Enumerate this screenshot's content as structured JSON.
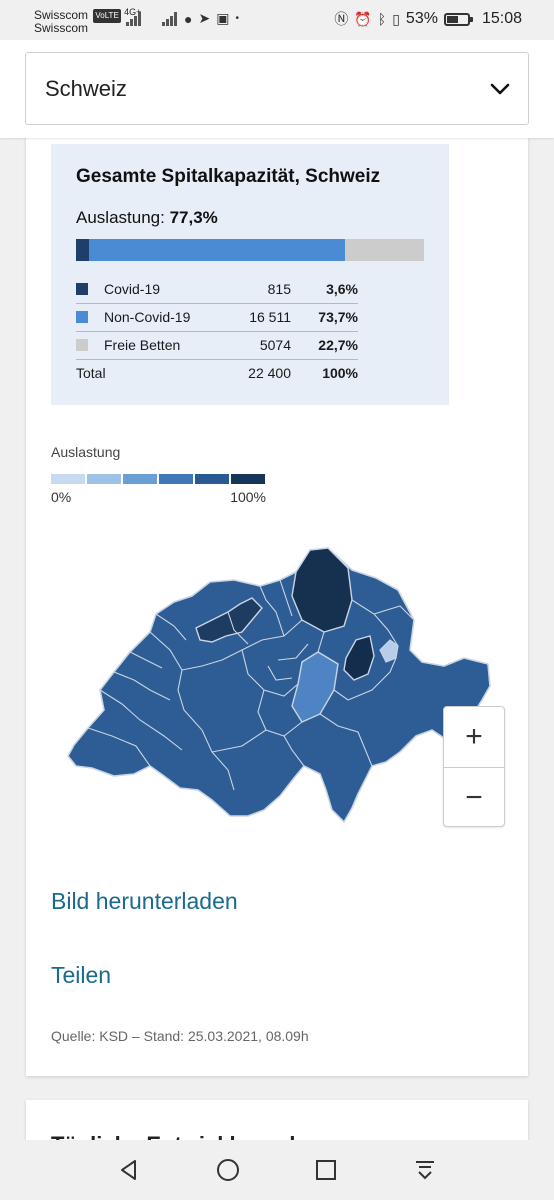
{
  "status_bar": {
    "carrier_1": "Swisscom",
    "carrier_1_badge": "VoLTE",
    "carrier_1_net": "4G+",
    "carrier_2": "Swisscom",
    "battery": "53%",
    "time": "15:08"
  },
  "region_select": {
    "value": "Schweiz"
  },
  "capacity": {
    "title": "Gesamte Spitalkapazität, Schweiz",
    "util_label": "Auslastung:",
    "util_value": "77,3%",
    "rows": [
      {
        "name": "Covid-19",
        "value": "815",
        "pct": "3,6%",
        "fraction": 0.036,
        "color": "#1d3f69"
      },
      {
        "name": "Non-Covid-19",
        "value": "16 511",
        "pct": "73,7%",
        "fraction": 0.737,
        "color": "#4a8bd4"
      },
      {
        "name": "Freie Betten",
        "value": "5074",
        "pct": "22,7%",
        "fraction": 0.227,
        "color": "#cccccc"
      }
    ],
    "total": {
      "name": "Total",
      "value": "22 400",
      "pct": "100%"
    }
  },
  "scale": {
    "label": "Auslastung",
    "min": "0%",
    "max": "100%",
    "colors": [
      "#c6dbef",
      "#9ec2e6",
      "#6a9fd6",
      "#3f77b8",
      "#2a5a93",
      "#163659"
    ]
  },
  "zoom": {
    "in": "+",
    "out": "−"
  },
  "links": {
    "download": "Bild herunterladen",
    "share": "Teilen"
  },
  "source": "Quelle: KSD – Stand: 25.03.2021, 08.09h",
  "next_section_title": "Tägliche Entwicklung der"
}
